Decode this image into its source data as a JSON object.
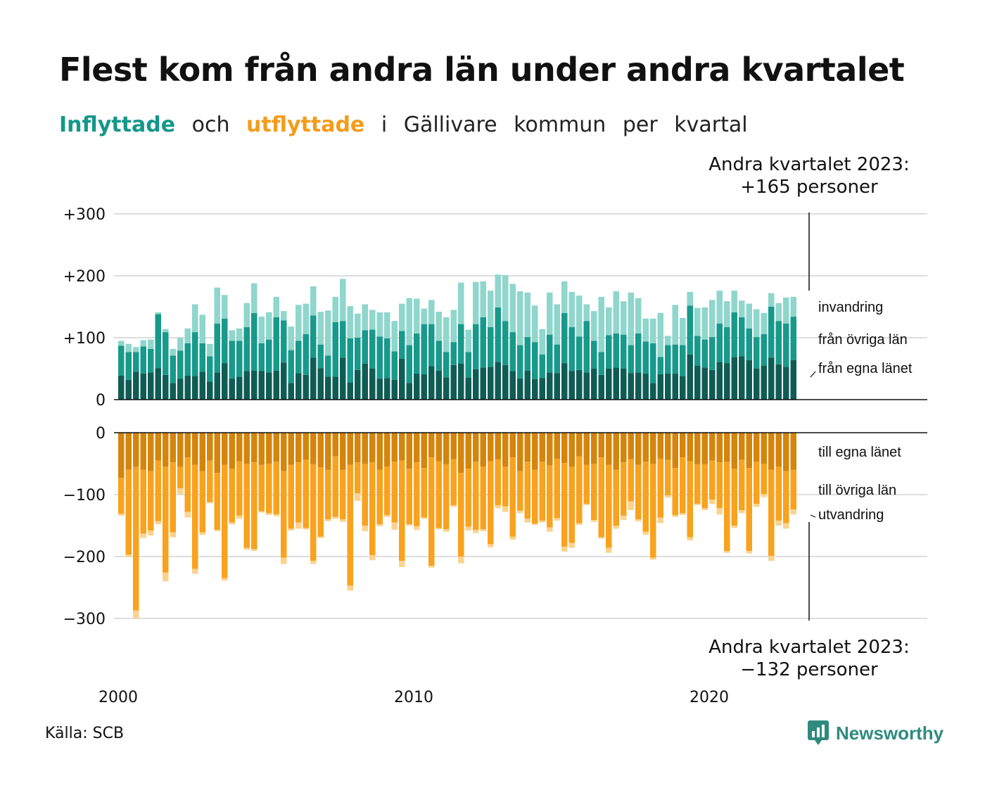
{
  "title": "Flest kom från andra län under andra kvartalet",
  "subtitle": {
    "inflyttade": "Inflyttade",
    "och": "och",
    "utflyttade": "utflyttade",
    "rest": [
      "i",
      "Gällivare",
      "kommun",
      "per",
      "kvartal"
    ]
  },
  "callout_top": {
    "line1": "Andra kvartalet 2023:",
    "line2": "+165 personer"
  },
  "callout_bottom": {
    "line1": "Andra kvartalet 2023:",
    "line2": "−132 personer"
  },
  "source": "Källa: SCB",
  "brand": {
    "name": "Newsworthy",
    "icon": "newsworthy-logo-icon"
  },
  "colors": {
    "in_own": "#0f5c55",
    "in_other": "#17998b",
    "in_foreign": "#8fd6cc",
    "out_own": "#d4850c",
    "out_other": "#f8a21e",
    "out_foreign": "#fbd38f",
    "grid": "#dddddd",
    "axis": "#111111"
  },
  "chart_data": {
    "type": "bar",
    "stacked": true,
    "grid": true,
    "x_unit": "quarter",
    "x_start": "2000 Q1",
    "x_end": "2023 Q2",
    "x_ticks": [
      "2000",
      "2010",
      "2020"
    ],
    "y_ticks_in": [
      "+300",
      "+200",
      "+100",
      "0"
    ],
    "y_ticks_out": [
      "0",
      "−100",
      "−200",
      "−300"
    ],
    "ylim_in": [
      0,
      300
    ],
    "ylim_out": [
      -300,
      0
    ],
    "legend_in": [
      "invandring",
      "från övriga län",
      "från egna länet"
    ],
    "legend_out": [
      "till egna länet",
      "till övriga län",
      "utvandring"
    ],
    "series_in": [
      {
        "name": "från egna länet",
        "values": [
          39,
          32,
          45,
          42,
          44,
          51,
          40,
          27,
          34,
          39,
          38,
          45,
          29,
          44,
          59,
          34,
          37,
          46,
          47,
          46,
          44,
          47,
          60,
          27,
          43,
          40,
          68,
          51,
          37,
          37,
          68,
          28,
          48,
          58,
          50,
          34,
          35,
          32,
          66,
          27,
          42,
          41,
          54,
          47,
          36,
          56,
          58,
          36,
          49,
          52,
          53,
          61,
          56,
          46,
          34,
          47,
          33,
          35,
          44,
          43,
          59,
          46,
          48,
          44,
          50,
          40,
          50,
          52,
          50,
          43,
          44,
          42,
          27,
          41,
          42,
          42,
          38,
          73,
          55,
          52,
          48,
          61,
          59,
          69,
          70,
          64,
          50,
          55,
          68,
          57,
          53,
          64
        ]
      },
      {
        "name": "från övriga län",
        "values": [
          48,
          45,
          32,
          44,
          38,
          87,
          69,
          44,
          45,
          52,
          71,
          46,
          41,
          79,
          72,
          61,
          58,
          71,
          93,
          45,
          53,
          86,
          68,
          53,
          52,
          66,
          68,
          38,
          34,
          88,
          59,
          71,
          52,
          54,
          63,
          68,
          64,
          46,
          45,
          61,
          65,
          81,
          68,
          48,
          41,
          37,
          64,
          41,
          73,
          81,
          64,
          88,
          71,
          63,
          54,
          54,
          60,
          38,
          61,
          46,
          81,
          71,
          54,
          83,
          45,
          37,
          54,
          55,
          55,
          45,
          63,
          52,
          64,
          28,
          46,
          47,
          50,
          79,
          48,
          45,
          53,
          62,
          58,
          72,
          63,
          51,
          51,
          51,
          82,
          70,
          70,
          70
        ]
      },
      {
        "name": "invandring",
        "values": [
          8,
          13,
          8,
          10,
          15,
          3,
          5,
          11,
          21,
          24,
          45,
          46,
          20,
          58,
          38,
          17,
          20,
          39,
          48,
          43,
          44,
          33,
          15,
          38,
          58,
          49,
          47,
          53,
          73,
          41,
          68,
          52,
          39,
          42,
          32,
          39,
          42,
          49,
          44,
          76,
          56,
          25,
          39,
          47,
          56,
          52,
          67,
          36,
          68,
          58,
          59,
          53,
          74,
          78,
          87,
          72,
          59,
          41,
          68,
          65,
          51,
          57,
          66,
          27,
          48,
          89,
          45,
          68,
          54,
          85,
          57,
          37,
          40,
          71,
          15,
          64,
          44,
          22,
          45,
          52,
          60,
          53,
          42,
          35,
          27,
          40,
          45,
          34,
          22,
          29,
          42,
          32
        ]
      }
    ],
    "series_out": [
      {
        "name": "till egna länet",
        "values": [
          73,
          60,
          55,
          60,
          62,
          45,
          55,
          48,
          55,
          40,
          52,
          62,
          45,
          65,
          52,
          58,
          46,
          50,
          48,
          52,
          50,
          47,
          62,
          52,
          48,
          44,
          51,
          56,
          60,
          38,
          60,
          52,
          48,
          50,
          48,
          60,
          55,
          47,
          45,
          58,
          48,
          57,
          40,
          46,
          51,
          43,
          65,
          58,
          47,
          55,
          46,
          43,
          55,
          40,
          62,
          47,
          60,
          47,
          53,
          42,
          49,
          55,
          38,
          52,
          50,
          40,
          52,
          60,
          48,
          43,
          52,
          47,
          50,
          42,
          44,
          57,
          40,
          46,
          51,
          51,
          45,
          48,
          47,
          58,
          44,
          57,
          47,
          50,
          60,
          55,
          62,
          60
        ]
      },
      {
        "name": "till övriga län",
        "values": [
          58,
          137,
          232,
          103,
          96,
          98,
          171,
          113,
          35,
          88,
          168,
          99,
          67,
          92,
          183,
          87,
          88,
          136,
          140,
          75,
          80,
          85,
          140,
          103,
          97,
          110,
          156,
          112,
          80,
          98,
          80,
          195,
          50,
          100,
          150,
          88,
          78,
          98,
          162,
          90,
          103,
          80,
          175,
          108,
          105,
          74,
          135,
          94,
          110,
          101,
          134,
          74,
          64,
          128,
          64,
          92,
          87,
          95,
          100,
          96,
          135,
          123,
          108,
          63,
          91,
          129,
          134,
          90,
          86,
          68,
          88,
          113,
          152,
          95,
          57,
          76,
          90,
          123,
          64,
          71,
          63,
          74,
          144,
          92,
          81,
          134,
          68,
          49,
          139,
          87,
          84,
          64
        ]
      },
      {
        "name": "utvandring",
        "values": [
          3,
          4,
          13,
          7,
          8,
          5,
          14,
          8,
          9,
          9,
          8,
          4,
          2,
          2,
          4,
          3,
          5,
          3,
          3,
          2,
          3,
          3,
          10,
          3,
          10,
          2,
          5,
          2,
          3,
          3,
          4,
          8,
          12,
          9,
          8,
          3,
          3,
          12,
          10,
          2,
          6,
          2,
          3,
          2,
          4,
          3,
          11,
          6,
          5,
          3,
          5,
          5,
          9,
          5,
          4,
          6,
          2,
          3,
          7,
          4,
          8,
          8,
          3,
          2,
          3,
          2,
          8,
          5,
          7,
          14,
          3,
          5,
          3,
          9,
          4,
          3,
          3,
          5,
          2,
          3,
          7,
          10,
          3,
          4,
          5,
          4,
          5,
          5,
          8,
          8,
          9,
          8
        ]
      }
    ]
  }
}
